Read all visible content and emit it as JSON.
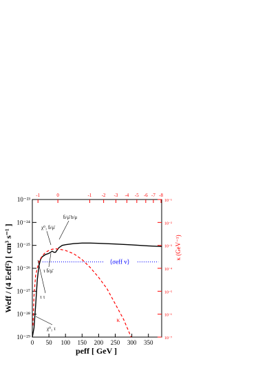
{
  "chart_data": {
    "type": "line",
    "x_label": "peff [ GeV ]",
    "y_label": "Weff / (4 Eeff²) [ cm³ s⁻¹ ]",
    "y2_label": "κ (GeV⁻¹)",
    "log_y": true,
    "log_y2": true,
    "xlim": [
      0,
      390
    ],
    "xticks": [
      0,
      50,
      100,
      150,
      200,
      250,
      300,
      350
    ],
    "ylim": [
      1e-29,
      1e-23
    ],
    "yticks": [
      {
        "value": 1e-29,
        "label": "10⁻²⁹"
      },
      {
        "value": 1e-28,
        "label": "10⁻²⁸"
      },
      {
        "value": 1e-27,
        "label": "10⁻²⁷"
      },
      {
        "value": 1e-26,
        "label": "10⁻²⁶"
      },
      {
        "value": 1e-25,
        "label": "10⁻²⁵"
      },
      {
        "value": 1e-24,
        "label": "10⁻²⁴"
      },
      {
        "value": 1e-23,
        "label": "10⁻²³"
      }
    ],
    "y2lim": [
      1e-07,
      0.1
    ],
    "y2ticks": [
      {
        "value": 1e-07,
        "label": "10⁻⁷"
      },
      {
        "value": 1e-06,
        "label": "10⁻⁶"
      },
      {
        "value": 1e-05,
        "label": "10⁻⁵"
      },
      {
        "value": 0.0001,
        "label": "10⁻⁴"
      },
      {
        "value": 0.001,
        "label": "10⁻³"
      },
      {
        "value": 0.01,
        "label": "10⁻²"
      },
      {
        "value": 0.1,
        "label": "10⁻¹"
      }
    ],
    "x2ticks": [
      {
        "value": 17,
        "label": "-1"
      },
      {
        "value": 77,
        "label": "0"
      },
      {
        "value": 173,
        "label": "-1"
      },
      {
        "value": 215,
        "label": "-2"
      },
      {
        "value": 252,
        "label": "-3"
      },
      {
        "value": 285,
        "label": "-4"
      },
      {
        "value": 315,
        "label": "-5"
      },
      {
        "value": 342,
        "label": "-6"
      },
      {
        "value": 365,
        "label": "-7"
      },
      {
        "value": 388,
        "label": "-8"
      }
    ],
    "series": [
      {
        "color": "#000000",
        "dash": "solid",
        "x": [
          0,
          5,
          10,
          15,
          20,
          25,
          30,
          40,
          50,
          55,
          60,
          65,
          70,
          80,
          90,
          100,
          125,
          150,
          175,
          200,
          250,
          300,
          350,
          390
        ],
        "values": [
          1e-29,
          2.5e-29,
          2.5e-28,
          3.2e-27,
          1.3e-26,
          2.5e-26,
          3.2e-26,
          4e-26,
          4.5e-26,
          5e-26,
          5.6e-26,
          5e-26,
          5e-26,
          7.9e-26,
          1e-25,
          1.07e-25,
          1.2e-25,
          1.26e-25,
          1.26e-25,
          1.23e-25,
          1.15e-25,
          1.05e-25,
          9.5e-26,
          8.9e-26
        ]
      },
      {
        "name": "κ",
        "color": "#ff0000",
        "dash": "dashed",
        "axis": "y2",
        "x": [
          2,
          5,
          10,
          20,
          30,
          40,
          50,
          60,
          70,
          80,
          100,
          125,
          150,
          175,
          200,
          225,
          250,
          275,
          298
        ],
        "values": [
          3.2e-07,
          6.3e-06,
          5e-05,
          0.0002,
          0.00035,
          0.0005,
          0.0006,
          0.00068,
          0.00071,
          0.00069,
          0.0006,
          0.00043,
          0.00024,
          0.000107,
          4e-05,
          1.3e-05,
          2.8e-06,
          6e-07,
          1e-07
        ]
      },
      {
        "name": "⟨σeff v⟩",
        "color": "#0000ff",
        "dash": "dotted",
        "x": [
          31,
          380
        ],
        "values": [
          1.9e-26,
          1.9e-26
        ]
      }
    ],
    "annotations": [
      "χ⁰₁ b̄/μ̄",
      "b̄/μ̄ b/μ",
      "τ b̄/μ̄",
      "τ τ",
      "χ⁰₁ τ"
    ]
  }
}
